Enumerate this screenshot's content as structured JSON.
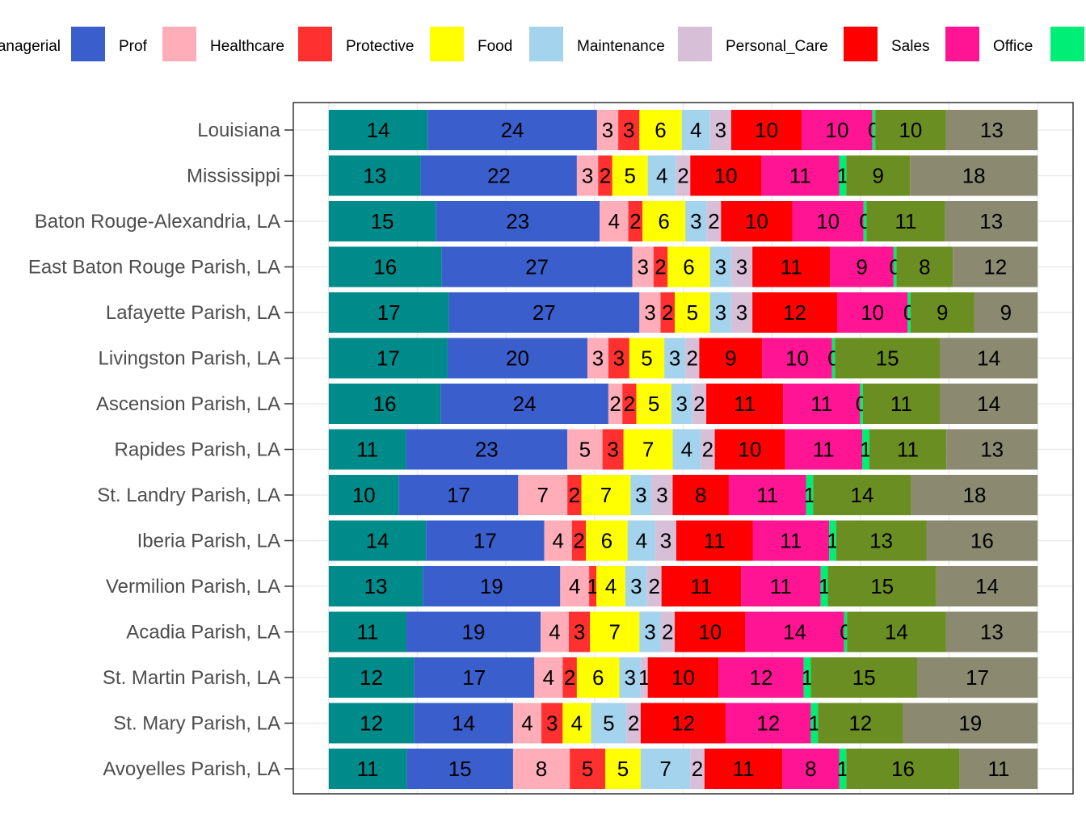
{
  "chart_data": {
    "type": "bar",
    "orientation": "horizontal",
    "stacked": true,
    "title": "",
    "xlabel": "",
    "ylabel": "",
    "xlim": [
      -5,
      105
    ],
    "grid": true,
    "legend_position": "top",
    "categories": [
      "Louisiana",
      "Mississippi",
      "Baton Rouge-Alexandria, LA",
      "East Baton Rouge Parish, LA",
      "Lafayette Parish, LA",
      "Livingston Parish, LA",
      "Ascension Parish, LA",
      "Rapides Parish, LA",
      "St. Landry Parish, LA",
      "Iberia Parish, LA",
      "Vermilion Parish, LA",
      "Acadia Parish, LA",
      "St. Martin Parish, LA",
      "St. Mary Parish, LA",
      "Avoyelles Parish, LA"
    ],
    "series": [
      {
        "name": "Managerial",
        "color": "#008B8B",
        "values": [
          14,
          13,
          15,
          16,
          17,
          17,
          16,
          11,
          10,
          14,
          13,
          11,
          12,
          12,
          11
        ]
      },
      {
        "name": "Prof",
        "color": "#3A5FCD",
        "values": [
          24,
          22,
          23,
          27,
          27,
          20,
          24,
          23,
          17,
          17,
          19,
          19,
          17,
          14,
          15
        ]
      },
      {
        "name": "Healthcare",
        "color": "#FFAEB9",
        "values": [
          3,
          3,
          4,
          3,
          3,
          3,
          2,
          5,
          7,
          4,
          4,
          4,
          4,
          4,
          8
        ]
      },
      {
        "name": "Protective",
        "color": "#FF3030",
        "values": [
          3,
          2,
          2,
          2,
          2,
          3,
          2,
          3,
          2,
          2,
          1,
          3,
          2,
          3,
          5
        ]
      },
      {
        "name": "Food",
        "color": "#FFFF00",
        "values": [
          6,
          5,
          6,
          6,
          5,
          5,
          5,
          7,
          7,
          6,
          4,
          7,
          6,
          4,
          5
        ]
      },
      {
        "name": "Maintenance",
        "color": "#A4D3EE",
        "values": [
          4,
          4,
          3,
          3,
          3,
          3,
          3,
          4,
          3,
          4,
          3,
          3,
          3,
          5,
          7
        ]
      },
      {
        "name": "Personal_Care",
        "color": "#D8BFD8",
        "values": [
          3,
          2,
          2,
          3,
          3,
          2,
          2,
          2,
          3,
          3,
          2,
          2,
          1,
          2,
          2
        ]
      },
      {
        "name": "Sales",
        "color": "#FF0000",
        "values": [
          10,
          10,
          10,
          11,
          12,
          9,
          11,
          10,
          8,
          11,
          11,
          10,
          10,
          12,
          11
        ]
      },
      {
        "name": "Office",
        "color": "#FF1493",
        "values": [
          10,
          11,
          10,
          9,
          10,
          10,
          11,
          11,
          11,
          11,
          11,
          14,
          12,
          12,
          8
        ]
      },
      {
        "name": "",
        "color": "#00EE76",
        "values": [
          0,
          1,
          0,
          0,
          0,
          0,
          0,
          1,
          1,
          1,
          1,
          0,
          1,
          1,
          1
        ]
      },
      {
        "name": "",
        "color": "#6B8E23",
        "values": [
          10,
          9,
          11,
          8,
          9,
          15,
          11,
          11,
          14,
          13,
          15,
          14,
          15,
          12,
          16
        ]
      },
      {
        "name": "",
        "color": "#8B8970",
        "values": [
          13,
          18,
          13,
          12,
          9,
          14,
          14,
          13,
          18,
          16,
          14,
          13,
          17,
          19,
          11
        ]
      }
    ]
  }
}
